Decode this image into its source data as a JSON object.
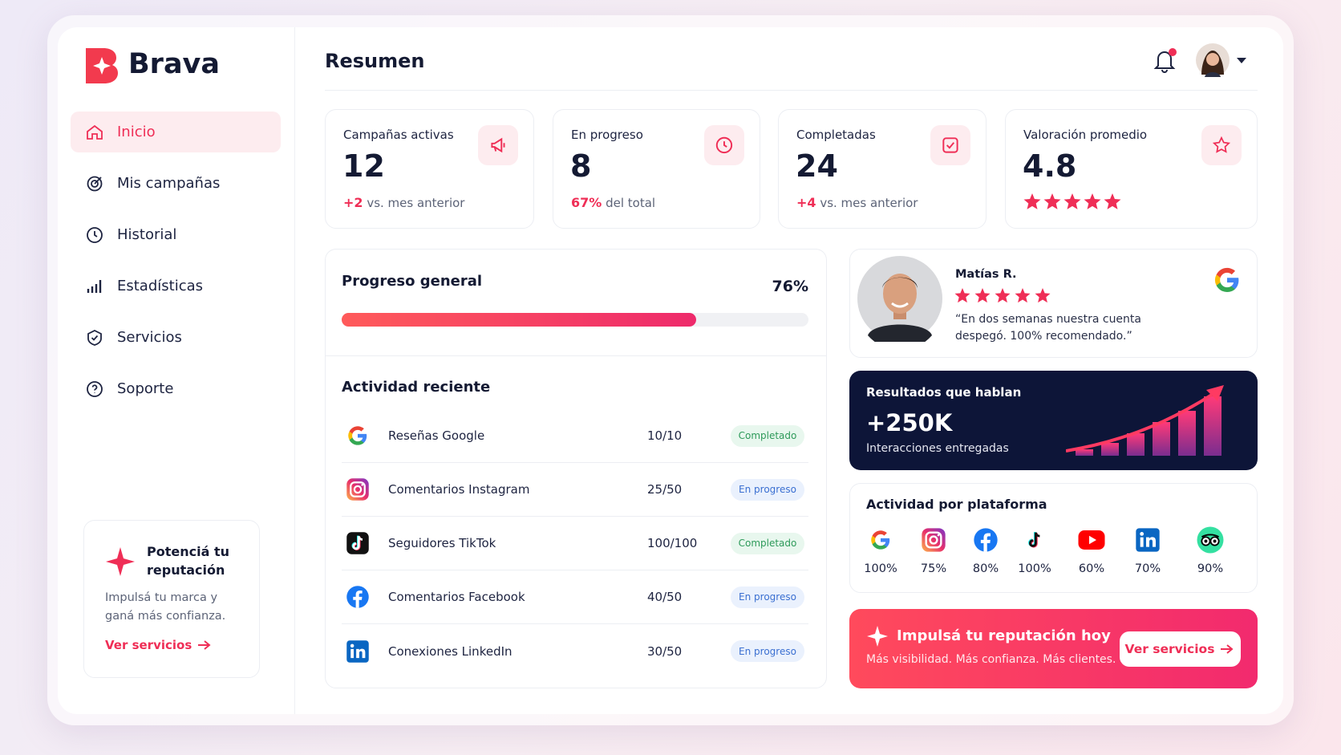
{
  "brand": "Brava",
  "nav": [
    "Inicio",
    "Mis campañas",
    "Historial",
    "Estadísticas",
    "Servicios",
    "Soporte"
  ],
  "promo": {
    "title": "Potenciá tu reputación",
    "text": "Impulsá tu marca y ganá más confianza.",
    "link": "Ver servicios"
  },
  "header": {
    "title": "Resumen"
  },
  "stats": [
    {
      "label": "Campañas activas",
      "value": "12",
      "delta": "+2",
      "note": "vs. mes anterior"
    },
    {
      "label": "En progreso",
      "value": "8",
      "delta": "67%",
      "note": "del total"
    },
    {
      "label": "Completadas",
      "value": "24",
      "delta": "+4",
      "note": "vs. mes anterior"
    },
    {
      "label": "Valoración promedio",
      "value": "4.8"
    }
  ],
  "progress": {
    "title": "Progreso general",
    "value": 76,
    "label": "76%"
  },
  "activity": {
    "title": "Actividad reciente",
    "rows": [
      [
        "Reseñas Google",
        "10/10",
        "Completado"
      ],
      [
        "Comentarios Instagram",
        "25/50",
        "En progreso"
      ],
      [
        "Seguidores TikTok",
        "100/100",
        "Completado"
      ],
      [
        "Comentarios Facebook",
        "40/50",
        "En progreso"
      ],
      [
        "Conexiones LinkedIn",
        "30/50",
        "En progreso"
      ]
    ]
  },
  "review": {
    "name": "Matías R.",
    "quote": "“En dos semanas nuestra cuenta despegó. 100% recomendado.”"
  },
  "results": {
    "title": "Resultados que hablan",
    "value": "+250K",
    "subtitle": "Interacciones entregadas"
  },
  "platforms": {
    "title": "Actividad por plataforma",
    "items": [
      "100%",
      "75%",
      "80%",
      "100%",
      "60%",
      "70%",
      "90%"
    ]
  },
  "cta": {
    "title": "Impulsá tu reputación hoy",
    "text": "Más visibilidad. Más confianza. Más clientes.",
    "button": "Ver servicios"
  }
}
